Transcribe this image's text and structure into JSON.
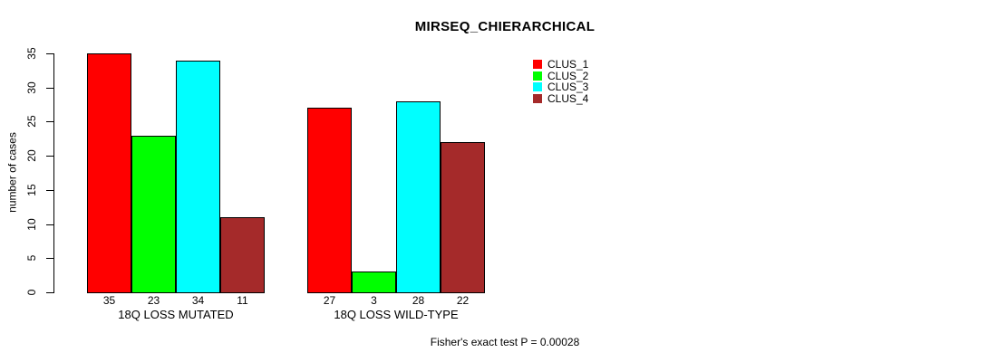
{
  "chart_data": {
    "type": "bar",
    "title": "MIRSEQ_CHIERARCHICAL",
    "ylabel": "number of cases",
    "ylim": [
      0,
      35
    ],
    "yticks": [
      0,
      5,
      10,
      15,
      20,
      25,
      30,
      35
    ],
    "categories": [
      "18Q LOSS MUTATED",
      "18Q LOSS WILD-TYPE"
    ],
    "series": [
      {
        "name": "CLUS_1",
        "color": "#ff0000",
        "values": [
          35,
          27
        ]
      },
      {
        "name": "CLUS_2",
        "color": "#00ff00",
        "values": [
          23,
          3
        ]
      },
      {
        "name": "CLUS_3",
        "color": "#00ffff",
        "values": [
          34,
          28
        ]
      },
      {
        "name": "CLUS_4",
        "color": "#a52a2a",
        "values": [
          11,
          22
        ]
      }
    ],
    "legend_position": "top-right",
    "grid": false,
    "axis_color": "#000000",
    "footer": "Fisher's exact test P = 0.00028"
  }
}
